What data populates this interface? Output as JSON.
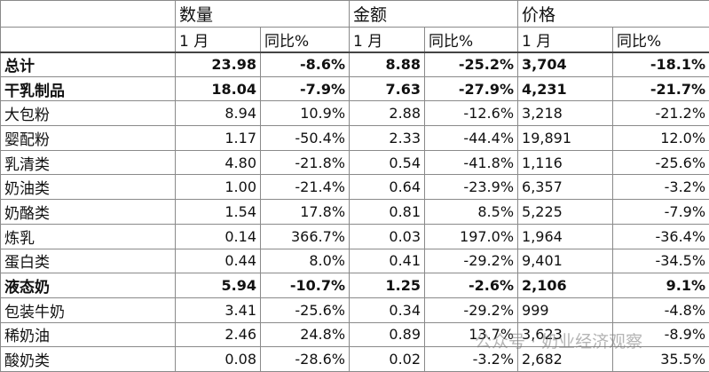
{
  "table": {
    "groups": [
      "数量",
      "金额",
      "价格"
    ],
    "subheaders": [
      "1 月",
      "同比%",
      "1 月",
      "同比%",
      "1 月",
      "同比%"
    ],
    "rows": [
      {
        "bold": true,
        "cells": [
          "总计",
          "23.98",
          "-8.6%",
          "8.88",
          "-25.2%",
          "3,704",
          "-18.1%"
        ]
      },
      {
        "bold": true,
        "cells": [
          "干乳制品",
          "18.04",
          "-7.9%",
          "7.63",
          "-27.9%",
          "4,231",
          "-21.7%"
        ]
      },
      {
        "bold": false,
        "cells": [
          "大包粉",
          "8.94",
          "10.9%",
          "2.88",
          "-12.6%",
          "3,218",
          "-21.2%"
        ]
      },
      {
        "bold": false,
        "cells": [
          "婴配粉",
          "1.17",
          "-50.4%",
          "2.33",
          "-44.4%",
          "19,891",
          "12.0%"
        ]
      },
      {
        "bold": false,
        "cells": [
          "乳清类",
          "4.80",
          "-21.8%",
          "0.54",
          "-41.8%",
          "1,116",
          "-25.6%"
        ]
      },
      {
        "bold": false,
        "cells": [
          "奶油类",
          "1.00",
          "-21.4%",
          "0.64",
          "-23.9%",
          "6,357",
          "-3.2%"
        ]
      },
      {
        "bold": false,
        "cells": [
          "奶酪类",
          "1.54",
          "17.8%",
          "0.81",
          "8.5%",
          "5,225",
          "-7.9%"
        ]
      },
      {
        "bold": false,
        "cells": [
          "炼乳",
          "0.14",
          "366.7%",
          "0.03",
          "197.0%",
          "1,964",
          "-36.4%"
        ]
      },
      {
        "bold": false,
        "cells": [
          "蛋白类",
          "0.44",
          "8.0%",
          "0.41",
          "-29.2%",
          "9,401",
          "-34.5%"
        ]
      },
      {
        "bold": true,
        "cells": [
          "液态奶",
          "5.94",
          "-10.7%",
          "1.25",
          "-2.6%",
          "2,106",
          "9.1%"
        ]
      },
      {
        "bold": false,
        "cells": [
          "包装牛奶",
          "3.41",
          "-25.6%",
          "0.34",
          "-29.2%",
          "999",
          "-4.8%"
        ]
      },
      {
        "bold": false,
        "cells": [
          "稀奶油",
          "2.46",
          "24.8%",
          "0.89",
          "13.7%",
          "3,623",
          "-8.9%"
        ]
      },
      {
        "bold": false,
        "cells": [
          "酸奶类",
          "0.08",
          "-28.6%",
          "0.02",
          "-3.2%",
          "2,682",
          "35.5%"
        ]
      }
    ]
  },
  "watermark": "公众号 · 奶业经济观察"
}
